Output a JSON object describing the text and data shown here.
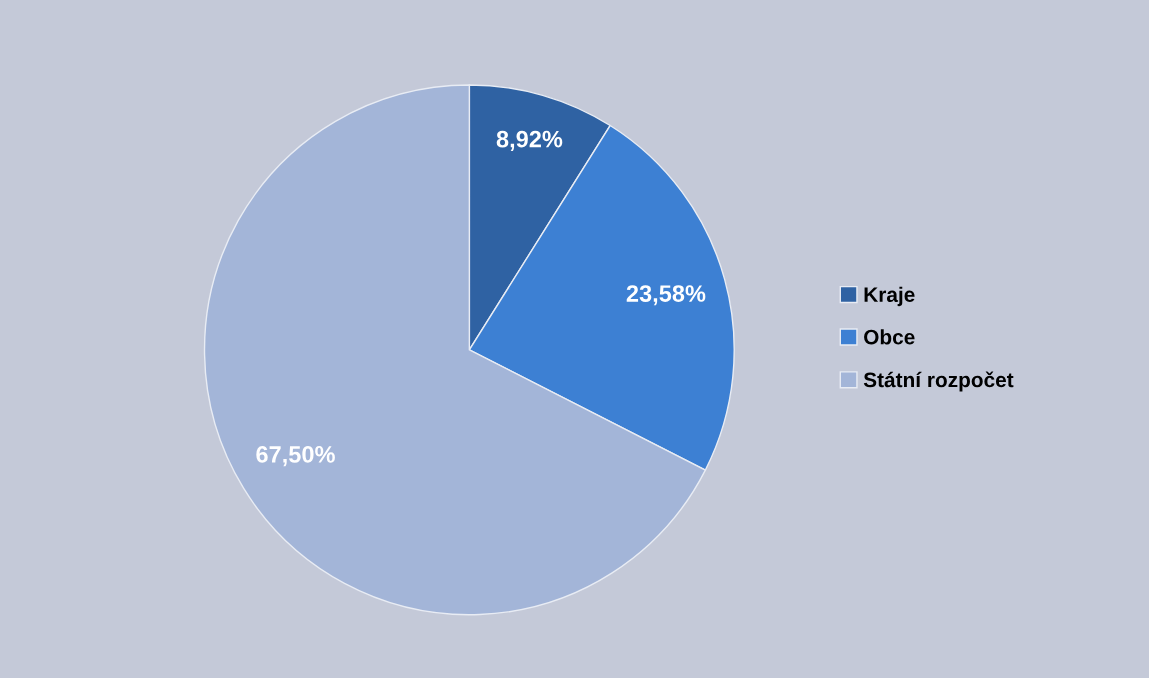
{
  "chart_data": {
    "type": "pie",
    "categories": [
      "Kraje",
      "Obce",
      "Státní rozpočet"
    ],
    "values": [
      8.92,
      23.58,
      67.5
    ],
    "value_labels": [
      "8,92%",
      "23,58%",
      "67,50%"
    ],
    "colors": [
      "#2f62a3",
      "#3d80d3",
      "#a3b5d8"
    ],
    "legend": "right"
  }
}
